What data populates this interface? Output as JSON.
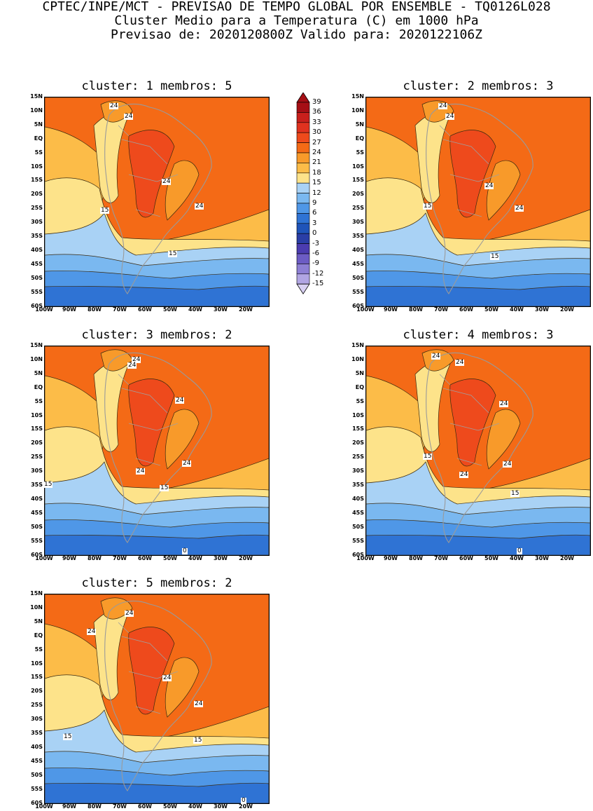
{
  "header": {
    "line1": "CPTEC/INPE/MCT - PREVISAO DE TEMPO GLOBAL POR ENSEMBLE - TQ0126L028",
    "line2": "Cluster Medio para a Temperatura (C) em 1000 hPa",
    "line3": "Previsao de: 2020120800Z   Valido para: 2020122106Z"
  },
  "axes": {
    "lat_ticks": [
      "15N",
      "10N",
      "5N",
      "EQ",
      "5S",
      "10S",
      "15S",
      "20S",
      "25S",
      "30S",
      "35S",
      "40S",
      "45S",
      "50S",
      "55S",
      "60S"
    ],
    "lon_ticks": [
      "100W",
      "90W",
      "80W",
      "70W",
      "60W",
      "50W",
      "40W",
      "30W",
      "20W"
    ]
  },
  "colorbar": {
    "labels": [
      "39",
      "36",
      "33",
      "30",
      "27",
      "24",
      "21",
      "18",
      "15",
      "12",
      "9",
      "6",
      "3",
      "0",
      "-3",
      "-6",
      "-9",
      "-12",
      "-15"
    ],
    "colors": [
      "#a50f15",
      "#c8201c",
      "#e0321f",
      "#ee4a1c",
      "#f46a16",
      "#f89a2a",
      "#fcbc48",
      "#fde38a",
      "#a9d2f5",
      "#7ab8f0",
      "#4f97e7",
      "#2f73d4",
      "#1f54b9",
      "#2a3ea6",
      "#4b3cb0",
      "#6c5cc4",
      "#8d7fd4",
      "#b1a5e3",
      "#d8d0f2"
    ]
  },
  "panels": [
    {
      "title": "cluster: 1   membros: 5",
      "labels": [
        "24",
        "24",
        "24",
        "24",
        "15",
        "15"
      ]
    },
    {
      "title": "cluster: 2   membros: 3",
      "labels": [
        "24",
        "24",
        "24",
        "24",
        "15",
        "15"
      ]
    },
    {
      "title": "cluster: 3   membros: 2",
      "labels": [
        "24",
        "24",
        "24",
        "24",
        "24",
        "15",
        "15",
        "0"
      ]
    },
    {
      "title": "cluster: 4   membros: 3",
      "labels": [
        "24",
        "24",
        "24",
        "24",
        "24",
        "15",
        "15",
        "0"
      ]
    },
    {
      "title": "cluster: 5   membros: 2",
      "labels": [
        "24",
        "24",
        "24",
        "24",
        "15",
        "15",
        "0"
      ]
    }
  ]
}
